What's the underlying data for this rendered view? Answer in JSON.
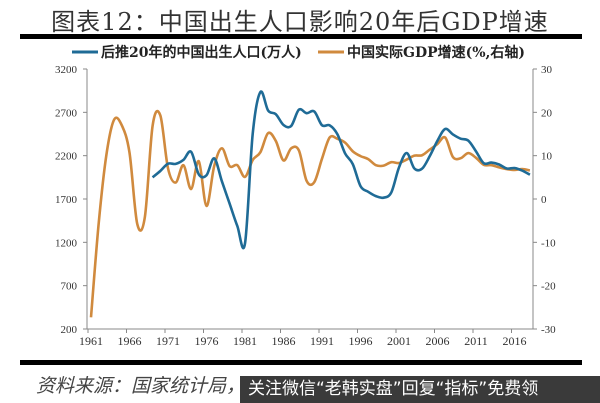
{
  "title": "图表12：中国出生人口影响20年后GDP增速",
  "source": "资料来源：国家统计局，",
  "banner": "关注微信“老韩实盘”回复“指标”免费领",
  "chart_data": {
    "type": "line",
    "title": "",
    "legend": {
      "placement": "top"
    },
    "grid": false,
    "x_ticks": [
      "1961",
      "1966",
      "1971",
      "1976",
      "1981",
      "1986",
      "1991",
      "1996",
      "2001",
      "2006",
      "2011",
      "2016"
    ],
    "y_left": {
      "range": [
        200,
        3200
      ],
      "ticks": [
        "3200",
        "2700",
        "2200",
        "1700",
        "1200",
        "700",
        "200"
      ]
    },
    "y_right": {
      "range": [
        -30,
        30
      ],
      "ticks": [
        "30",
        "20",
        "10",
        "0",
        "-10",
        "-20",
        "-30"
      ]
    },
    "series": [
      {
        "name": "后推20年的中国出生人口(万人)",
        "axis": "left",
        "color": "#1f6b96",
        "x_start": 1969,
        "values": [
          1950,
          2023,
          2107,
          2105,
          2151,
          2245,
          1984,
          1974,
          2169,
          1904,
          1647,
          1389,
          1188,
          2451,
          2934,
          2721,
          2679,
          2554,
          2543,
          2731,
          2690,
          2710,
          2551,
          2550,
          2447,
          2226,
          2102,
          1849,
          1783,
          1733,
          1715,
          1776,
          2064,
          2230,
          2052,
          2050,
          2196,
          2374,
          2508,
          2445,
          2396,
          2374,
          2250,
          2113,
          2120,
          2098,
          2052,
          2057,
          2028,
          1980
        ]
      },
      {
        "name": "中国实际GDP增速(%,右轴)",
        "axis": "right",
        "color": "#d08a3e",
        "x_start": 1961,
        "values": [
          -27.3,
          -5.6,
          10.2,
          18.3,
          17.0,
          10.7,
          -5.7,
          -4.1,
          16.9,
          19.3,
          7.1,
          3.8,
          7.8,
          2.3,
          8.7,
          -1.6,
          7.6,
          11.7,
          7.6,
          7.8,
          5.1,
          9.0,
          10.8,
          15.2,
          13.4,
          8.9,
          11.7,
          11.2,
          4.2,
          3.9,
          9.3,
          14.2,
          13.9,
          13.0,
          11.0,
          9.9,
          9.2,
          7.8,
          7.7,
          8.5,
          8.3,
          9.1,
          10.0,
          10.1,
          11.4,
          12.7,
          14.2,
          9.7,
          9.4,
          10.6,
          9.5,
          7.9,
          7.8,
          7.3,
          6.9,
          6.7,
          6.9,
          6.6
        ]
      }
    ]
  }
}
